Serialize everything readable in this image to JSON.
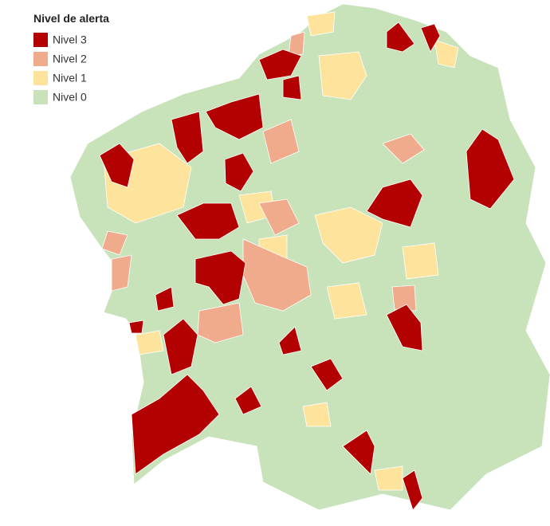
{
  "legend": {
    "title": "Nivel de alerta",
    "items": [
      {
        "label": "Nivel 3",
        "color": "#b30000"
      },
      {
        "label": "Nivel 2",
        "color": "#f0aa8c"
      },
      {
        "label": "Nivel 1",
        "color": "#fde39b"
      },
      {
        "label": "Nivel 0",
        "color": "#c8e2b9"
      }
    ]
  }
}
